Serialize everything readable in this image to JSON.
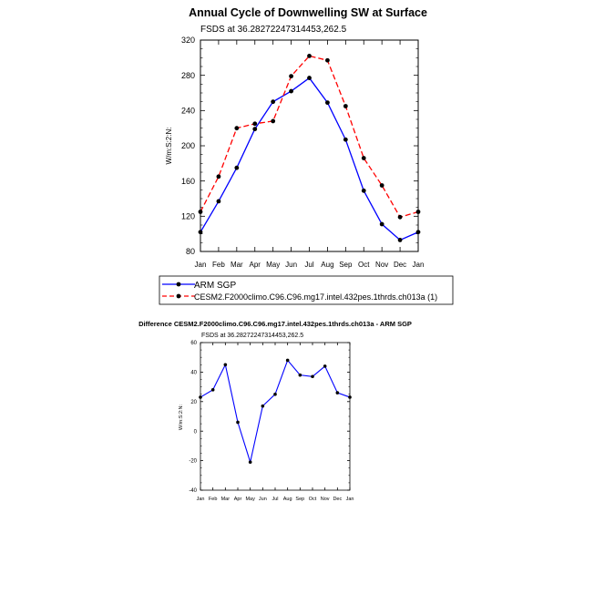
{
  "chart_data": [
    {
      "type": "line",
      "title": "Annual Cycle of Downwelling SW at Surface",
      "subtitle": "FSDS at 36.28272247314453,262.5",
      "xlabel": "",
      "ylabel": "W/m:S:2:N:",
      "categories": [
        "Jan",
        "Feb",
        "Mar",
        "Apr",
        "May",
        "Jun",
        "Jul",
        "Aug",
        "Sep",
        "Oct",
        "Nov",
        "Dec",
        "Jan"
      ],
      "ylim": [
        80,
        320
      ],
      "yticks": [
        "80",
        "120",
        "160",
        "200",
        "240",
        "280",
        "320"
      ],
      "series": [
        {
          "name": "ARM SGP",
          "color": "#0000ff",
          "dash": "solid",
          "values": [
            102,
            137,
            175,
            219,
            250,
            262,
            277,
            249,
            207,
            149,
            111,
            93,
            102
          ]
        },
        {
          "name": "CESM2.F2000climo.C96.C96.mg17.intel.432pes.1thrds.ch013a (1)",
          "color": "#ff0000",
          "dash": "dashed",
          "values": [
            125,
            165,
            220,
            225,
            228,
            279,
            302,
            297,
            245,
            186,
            155,
            119,
            125
          ]
        }
      ],
      "legend": "below"
    },
    {
      "type": "line",
      "title": "Difference CESM2.F2000climo.C96.C96.mg17.intel.432pes.1thrds.ch013a - ARM SGP",
      "subtitle": "FSDS at 36.28272247314453,262.5",
      "xlabel": "",
      "ylabel": "W/m:S:2:N:",
      "categories": [
        "Jan",
        "Feb",
        "Mar",
        "Apr",
        "May",
        "Jun",
        "Jul",
        "Aug",
        "Sep",
        "Oct",
        "Nov",
        "Dec",
        "Jan"
      ],
      "ylim": [
        -40,
        60
      ],
      "yticks": [
        "-40",
        "-20",
        "0",
        "20",
        "40",
        "60"
      ],
      "series": [
        {
          "name": "Difference",
          "color": "#0000ff",
          "dash": "solid",
          "values": [
            23,
            28,
            45,
            6,
            -21,
            17,
            25,
            48,
            38,
            37,
            44,
            26,
            23
          ]
        }
      ]
    }
  ]
}
